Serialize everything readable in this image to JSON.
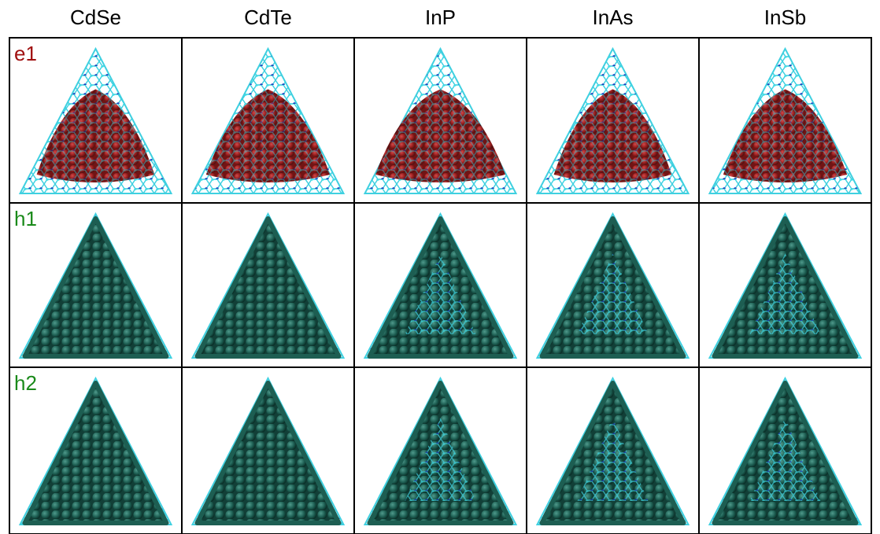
{
  "header": {
    "columns": [
      "CdSe",
      "CdTe",
      "InP",
      "InAs",
      "InSb"
    ]
  },
  "rows": [
    {
      "label": "e1"
    },
    {
      "label": "h1"
    },
    {
      "label": "h2"
    }
  ]
}
